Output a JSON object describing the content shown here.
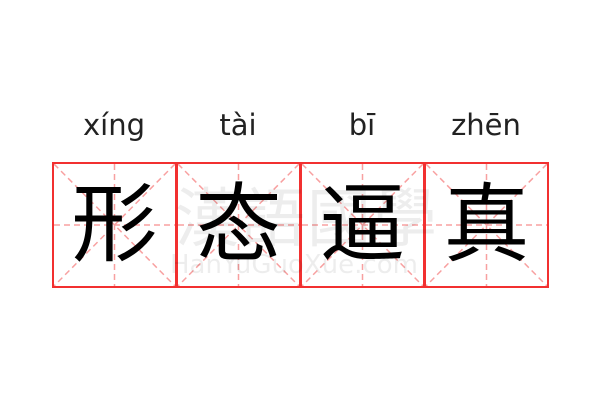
{
  "word": [
    {
      "pinyin": "xíng",
      "char": "形"
    },
    {
      "pinyin": "tài",
      "char": "态"
    },
    {
      "pinyin": "bī",
      "char": "逼"
    },
    {
      "pinyin": "zhēn",
      "char": "真"
    }
  ],
  "watermark": {
    "chinese": "漢語國學",
    "latin": "HanYuGuoXue.com"
  },
  "colors": {
    "grid_border": "#f23030",
    "guide_lines": "#f8a0a0",
    "text": "#000000"
  }
}
